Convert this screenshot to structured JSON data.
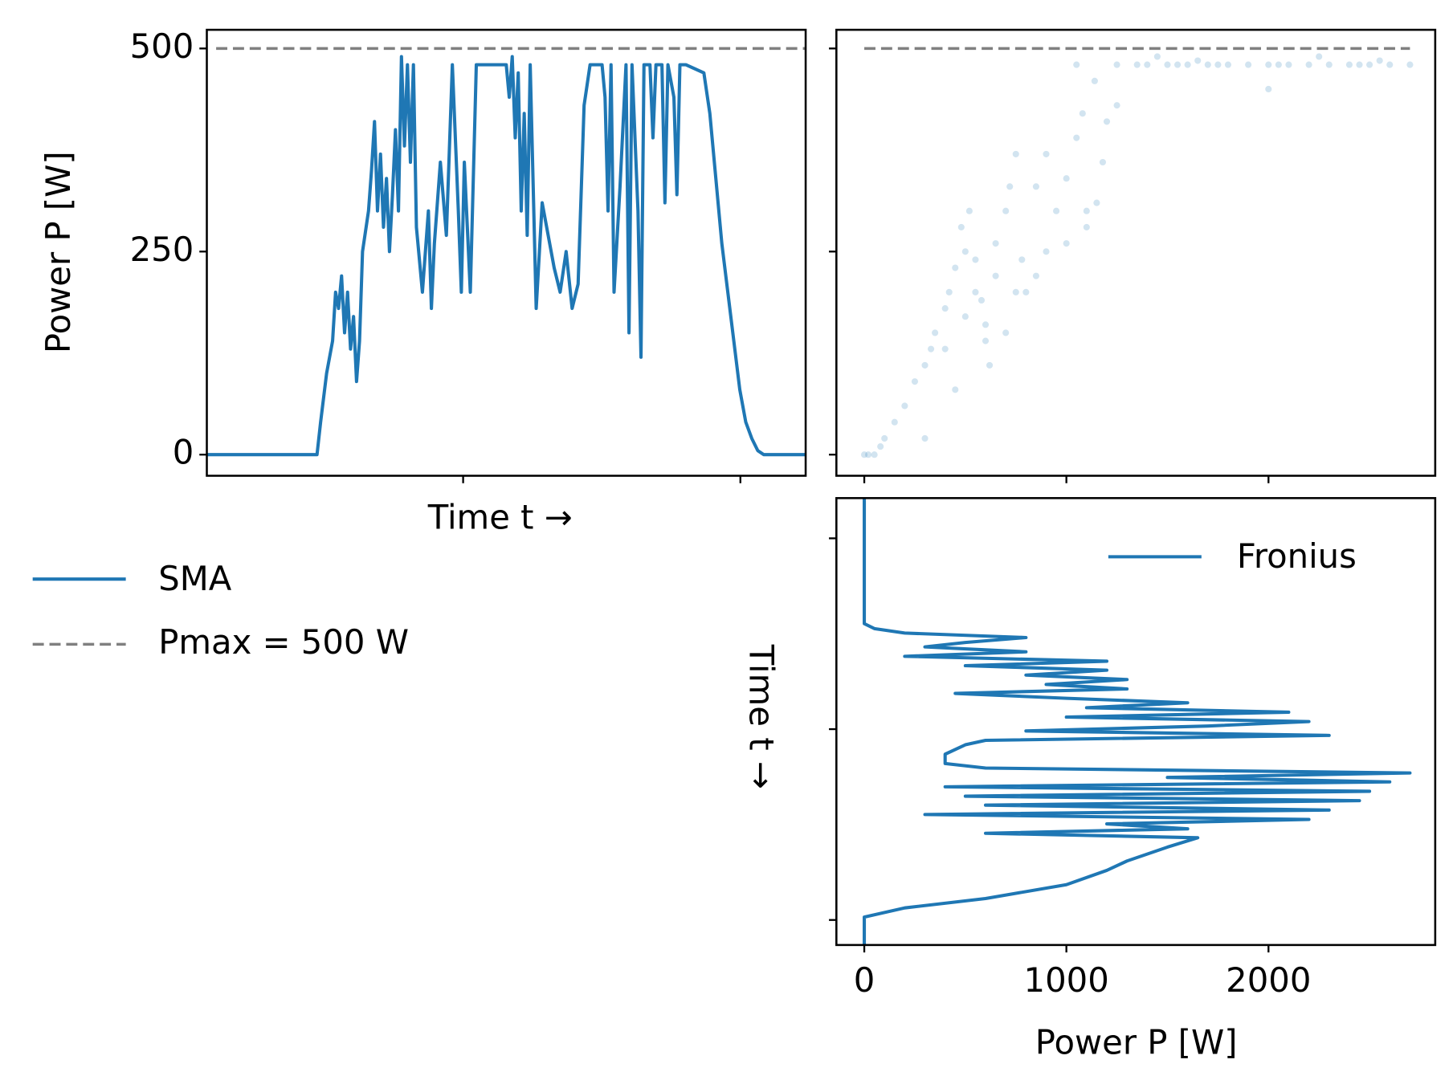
{
  "chart_data": [
    {
      "type": "line",
      "y_label": "Power P [W]",
      "x_label": "Time t →",
      "xlim": [
        0,
        100
      ],
      "xtick_marks": [
        42.8,
        89.1
      ],
      "ylim": [
        -26,
        523
      ],
      "yticks": [
        0,
        250,
        500
      ],
      "reference_line": {
        "value": 500,
        "label": "Pmax = 500 W",
        "color": "#808080"
      },
      "series": [
        {
          "name": "SMA",
          "color": "#1f77b4",
          "x": [
            0,
            18.4,
            19,
            20,
            21,
            21.5,
            22,
            22.5,
            23,
            23.5,
            24,
            24.5,
            25,
            25.5,
            26,
            27,
            27.5,
            28,
            28.5,
            29,
            29.5,
            30,
            30.5,
            31,
            31.5,
            32,
            32.5,
            33,
            33.5,
            34,
            34.5,
            35,
            36,
            37,
            37.5,
            38,
            39,
            40,
            41,
            42,
            42.5,
            43,
            44,
            45,
            50,
            50.5,
            51,
            51.5,
            52,
            52.5,
            53,
            53.5,
            54,
            55,
            56,
            57,
            57.5,
            58,
            59,
            60,
            61,
            62,
            63,
            64,
            66,
            66.5,
            67,
            67.5,
            68,
            69,
            70,
            70.5,
            71,
            72,
            72.5,
            73,
            74,
            74.5,
            75,
            76,
            76.5,
            77,
            78,
            78.5,
            79,
            80,
            83,
            84,
            85,
            86,
            87,
            88,
            89,
            90,
            91,
            92,
            93,
            100
          ],
          "values": [
            0,
            0,
            40,
            100,
            140,
            200,
            180,
            220,
            150,
            200,
            130,
            170,
            90,
            140,
            250,
            300,
            350,
            410,
            300,
            370,
            280,
            340,
            250,
            320,
            400,
            300,
            490,
            380,
            480,
            360,
            480,
            280,
            200,
            300,
            180,
            260,
            360,
            270,
            480,
            300,
            200,
            360,
            200,
            480,
            480,
            440,
            490,
            390,
            470,
            300,
            420,
            270,
            480,
            180,
            310,
            270,
            250,
            230,
            200,
            250,
            180,
            210,
            430,
            480,
            480,
            440,
            300,
            480,
            200,
            330,
            480,
            150,
            480,
            300,
            120,
            480,
            480,
            390,
            480,
            480,
            310,
            480,
            440,
            320,
            480,
            480,
            470,
            420,
            340,
            260,
            200,
            140,
            80,
            40,
            20,
            5,
            0,
            0
          ]
        }
      ]
    },
    {
      "type": "scatter",
      "xlim": [
        -138,
        2825
      ],
      "xtick_marks": [
        0,
        1000,
        2000
      ],
      "ylim": [
        -26,
        523
      ],
      "ytick_marks": [
        0,
        250,
        500
      ],
      "reference_line": {
        "value": 500,
        "color": "#808080"
      },
      "color": "#1f77b4",
      "opacity": 0.2,
      "x": [
        0,
        20,
        50,
        80,
        100,
        150,
        200,
        250,
        300,
        330,
        350,
        400,
        420,
        450,
        480,
        500,
        520,
        550,
        580,
        600,
        620,
        650,
        700,
        720,
        750,
        780,
        800,
        850,
        900,
        950,
        1000,
        1050,
        1080,
        1100,
        1150,
        1180,
        1200,
        1250,
        600,
        500,
        450,
        700,
        900,
        1000,
        1100,
        1140,
        1250,
        1400,
        1500,
        1600,
        1700,
        1800,
        1900,
        2000,
        2100,
        2200,
        2300,
        2400,
        2500,
        2600,
        1350,
        1450,
        1550,
        1650,
        1750,
        2050,
        2250,
        2450,
        2550,
        2700,
        1050,
        2000,
        300,
        400,
        550,
        650,
        750,
        850
      ],
      "values": [
        0,
        0,
        0,
        10,
        20,
        40,
        60,
        90,
        20,
        130,
        150,
        180,
        200,
        230,
        280,
        250,
        300,
        240,
        190,
        140,
        110,
        260,
        300,
        330,
        370,
        240,
        200,
        330,
        370,
        300,
        340,
        390,
        420,
        280,
        310,
        360,
        410,
        430,
        160,
        170,
        80,
        150,
        250,
        260,
        300,
        460,
        480,
        480,
        480,
        480,
        480,
        480,
        480,
        480,
        480,
        480,
        480,
        480,
        480,
        480,
        480,
        490,
        480,
        485,
        480,
        480,
        490,
        480,
        485,
        480,
        480,
        450,
        110,
        130,
        200,
        220,
        200,
        220
      ]
    },
    {
      "type": "line_vertical",
      "x_label": "Power P [W]",
      "y_label": "Time t →",
      "xlim": [
        -138,
        2825
      ],
      "xticks": [
        0,
        1000,
        2000
      ],
      "ylim": [
        0,
        100
      ],
      "ytick_marks": [
        5.6,
        48.3,
        91
      ],
      "legend": "upper right",
      "series": [
        {
          "name": "Fronius",
          "color": "#1f77b4",
          "t": [
            0,
            6.25,
            8.3,
            10.4,
            13.5,
            16.7,
            18.8,
            21.9,
            24,
            25,
            26,
            27.1,
            28.1,
            29.2,
            30.2,
            31.3,
            32.3,
            33.3,
            34.4,
            35.4,
            36.5,
            37.5,
            38.5,
            39.6,
            40.6,
            42.7,
            44.8,
            45.8,
            46.9,
            47.9,
            49,
            50,
            51,
            52.1,
            53.1,
            54.2,
            55.2,
            56.3,
            57.3,
            58.3,
            59.4,
            60.4,
            61.5,
            62.5,
            63.5,
            64.6,
            65.6,
            66.7,
            67.7,
            68.8,
            69.8,
            70.8,
            71.9,
            100
          ],
          "values": [
            0,
            0,
            200,
            600,
            1000,
            1200,
            1300,
            1500,
            1650,
            600,
            1600,
            1200,
            2200,
            300,
            2300,
            600,
            2450,
            500,
            2500,
            400,
            2600,
            1500,
            2700,
            600,
            400,
            400,
            500,
            600,
            2300,
            800,
            1700,
            2200,
            1000,
            2100,
            1100,
            1600,
            1000,
            450,
            1300,
            900,
            1300,
            800,
            1200,
            500,
            1200,
            200,
            800,
            300,
            500,
            800,
            200,
            50,
            0,
            0
          ]
        }
      ]
    }
  ]
}
